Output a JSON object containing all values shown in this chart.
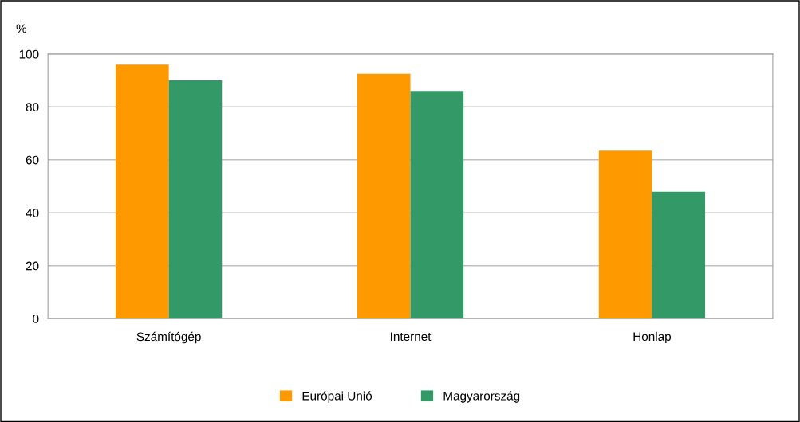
{
  "chart_data": {
    "type": "bar",
    "ylabel": "%",
    "categories": [
      "Számítógép",
      "Internet",
      "Honlap"
    ],
    "series": [
      {
        "name": "Európai Unió",
        "color": "#ff9900",
        "values": [
          96,
          92.5,
          63.5
        ]
      },
      {
        "name": "Magyarország",
        "color": "#339966",
        "values": [
          90,
          86,
          48
        ]
      }
    ],
    "ylim": [
      0,
      100
    ],
    "yticks": [
      0,
      20,
      40,
      60,
      80,
      100
    ],
    "grid": "y",
    "legend": "bottom"
  }
}
